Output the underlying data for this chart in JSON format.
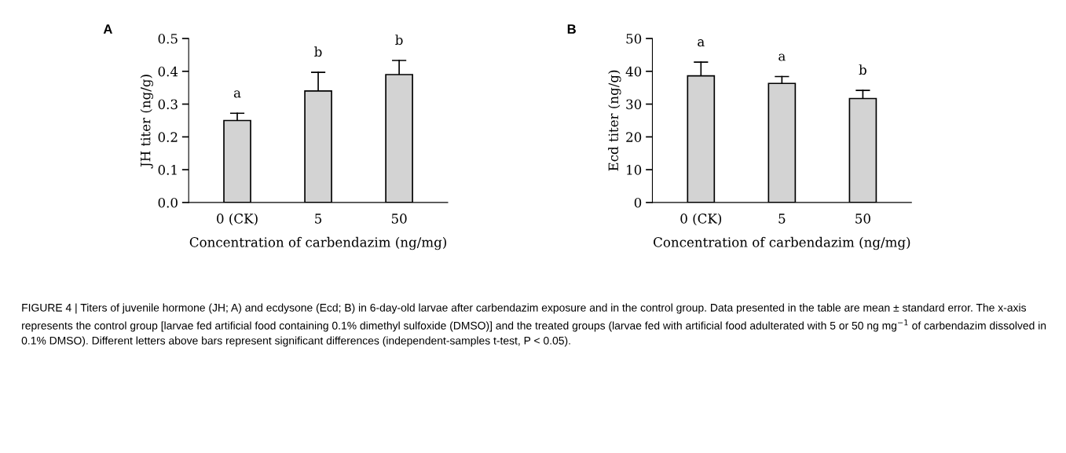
{
  "chart_data": [
    {
      "type": "bar",
      "title": "A",
      "categories": [
        "0 (CK)",
        "5",
        "50"
      ],
      "values": [
        0.25,
        0.34,
        0.39
      ],
      "color": "#d3d3d3",
      "errors": [
        [
          0.25,
          0.272
        ],
        [
          0.34,
          0.397
        ],
        [
          0.39,
          0.433
        ]
      ],
      "xlabel": "Concentration of carbendazim (ng/mg)",
      "ylabel": "JH titer (ng/g)",
      "ylim": [
        0,
        0.5
      ],
      "yticks": [
        {
          "value": 0,
          "label": "0.0"
        },
        0.1,
        0.2,
        0.3,
        0.4,
        0.5
      ],
      "annotations": [
        "a",
        "b",
        "b",
        "FIGURE 4 | Titers of juvenile hormone (JH; A) and ecdysone (Ecd; B) in 6-day-old larvae after carbendazim exposure and in the control group. Data presented in the table are mean ± standard error. The x-axis represents the control group [larvae fed artificial food containing 0.1% dimethyl sulfoxide (DMSO)] and the treated groups (larvae fed with artificial food adulterated with 5 or 50 ng mg$^{−1}$ of carbendazim dissolved in 0.1% DMSO). Different letters above bars represent significant differences (independent-samples t-test, P < 0.05)."
      ]
    },
    {
      "type": "bar",
      "title": "B",
      "categories": [
        "0 (CK)",
        "5",
        "50"
      ],
      "values": [
        38.6,
        36.3,
        31.7
      ],
      "color": "#d3d3d3",
      "errors": [
        [
          38.6,
          42.8
        ],
        [
          36.3,
          38.4
        ],
        [
          31.7,
          34.2
        ]
      ],
      "xlabel": "Concentration of carbendazim (ng/mg)",
      "ylabel": "Ecd titer (ng/g)",
      "ylim": [
        0,
        50
      ],
      "yticks": [
        0,
        10,
        20,
        30,
        40,
        50
      ],
      "annotations": [
        "a",
        "a",
        "b"
      ]
    }
  ]
}
